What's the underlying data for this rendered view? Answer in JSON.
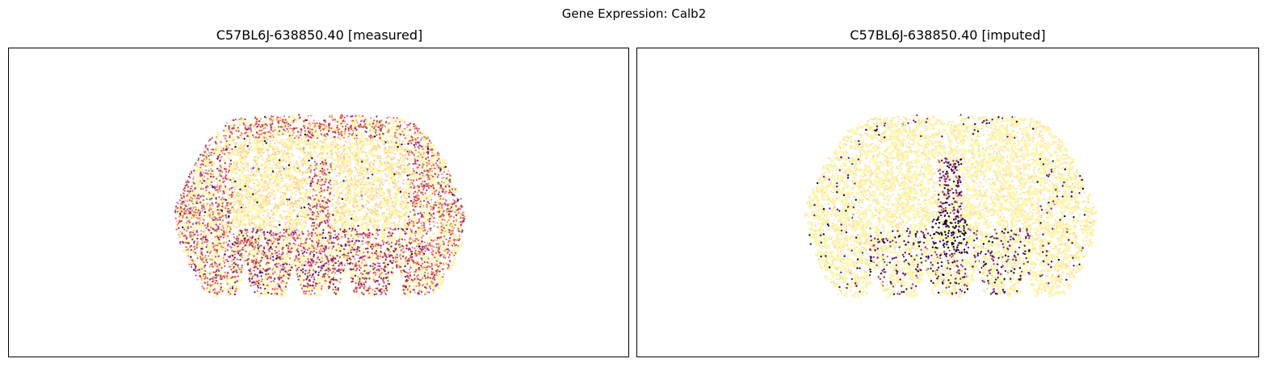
{
  "suptitle": "Gene Expression: Calb2",
  "chart_data": [
    {
      "type": "scatter",
      "title": "C57BL6J-638850.40 [measured]",
      "gene": "Calb2",
      "colormap": "magma_r",
      "background_color": "#fdf7b6",
      "axes_ticks": false,
      "xlabel": "",
      "ylabel": ""
    },
    {
      "type": "scatter",
      "title": "C57BL6J-638850.40 [imputed]",
      "gene": "Calb2",
      "colormap": "magma_r",
      "background_color": "#fdf7b6",
      "axes_ticks": false,
      "xlabel": "",
      "ylabel": ""
    }
  ]
}
